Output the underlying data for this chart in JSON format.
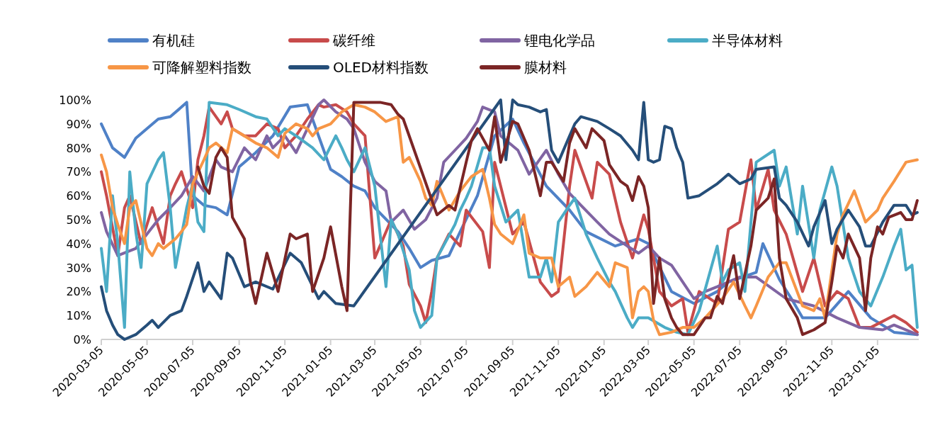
{
  "chart_data": {
    "type": "line",
    "xlim": [
      "2020-03-05",
      "2023-03-01"
    ],
    "xticks": [
      "2020-03-05",
      "2020-05-05",
      "2020-07-05",
      "2020-09-05",
      "2020-11-05",
      "2021-01-05",
      "2021-03-05",
      "2021-05-05",
      "2021-07-05",
      "2021-09-05",
      "2021-11-05",
      "2022-01-05",
      "2022-03-05",
      "2022-05-05",
      "2022-07-05",
      "2022-09-05",
      "2022-11-05",
      "2023-01-05"
    ],
    "ylim": [
      0,
      100
    ],
    "yticks": [
      {
        "value": 0,
        "label": "0%"
      },
      {
        "value": 10,
        "label": "10%"
      },
      {
        "value": 20,
        "label": "20%"
      },
      {
        "value": 30,
        "label": "30%"
      },
      {
        "value": 40,
        "label": "40%"
      },
      {
        "value": 50,
        "label": "50%"
      },
      {
        "value": 60,
        "label": "60%"
      },
      {
        "value": 70,
        "label": "70%"
      },
      {
        "value": 80,
        "label": "80%"
      },
      {
        "value": 90,
        "label": "90%"
      },
      {
        "value": 100,
        "label": "100%"
      }
    ],
    "legend": "top",
    "series": [
      {
        "name": "有机硅",
        "color": "#4f81c7",
        "x": [
          "2020-03-05",
          "2020-03-20",
          "2020-04-05",
          "2020-04-20",
          "2020-05-05",
          "2020-05-20",
          "2020-06-05",
          "2020-06-20",
          "2020-06-27",
          "2020-07-05",
          "2020-07-20",
          "2020-08-05",
          "2020-08-20",
          "2020-09-05",
          "2020-09-27",
          "2020-10-20",
          "2020-11-12",
          "2020-12-05",
          "2020-12-20",
          "2021-01-05",
          "2021-01-20",
          "2021-02-05",
          "2021-02-20",
          "2021-03-05",
          "2021-04-05",
          "2021-04-20",
          "2021-05-05",
          "2021-05-20",
          "2021-06-12",
          "2021-06-27",
          "2021-07-20",
          "2021-08-12",
          "2021-09-05",
          "2021-09-20",
          "2021-10-20",
          "2021-11-20",
          "2021-12-12",
          "2022-01-20",
          "2022-02-20",
          "2022-03-05",
          "2022-04-05",
          "2022-05-05",
          "2022-06-05",
          "2022-06-20",
          "2022-07-27",
          "2022-08-05",
          "2022-08-27",
          "2022-09-12",
          "2022-09-27",
          "2022-10-27",
          "2022-11-27",
          "2022-12-27",
          "2023-01-27",
          "2023-02-27"
        ],
        "values": [
          90,
          80,
          76,
          84,
          88,
          92,
          93,
          97,
          99,
          60,
          56,
          55,
          52,
          72,
          78,
          85,
          97,
          98,
          85,
          71,
          68,
          64,
          62,
          55,
          45,
          38,
          30,
          33,
          35,
          45,
          60,
          85,
          92,
          82,
          64,
          54,
          45,
          39,
          42,
          40,
          20,
          15,
          20,
          24,
          28,
          40,
          25,
          17,
          9,
          9,
          20,
          9,
          3,
          2
        ]
      },
      {
        "name": "碳纤维",
        "color": "#c84b4b",
        "x": [
          "2020-03-05",
          "2020-03-12",
          "2020-03-27",
          "2020-04-05",
          "2020-04-12",
          "2020-04-27",
          "2020-05-12",
          "2020-05-27",
          "2020-06-05",
          "2020-06-12",
          "2020-06-20",
          "2020-07-05",
          "2020-07-12",
          "2020-07-20",
          "2020-07-27",
          "2020-08-12",
          "2020-08-20",
          "2020-08-27",
          "2020-09-12",
          "2020-09-27",
          "2020-10-12",
          "2020-10-27",
          "2020-11-05",
          "2020-11-20",
          "2020-12-05",
          "2020-12-20",
          "2020-12-27",
          "2021-01-12",
          "2021-01-27",
          "2021-02-05",
          "2021-02-20",
          "2021-03-05",
          "2021-03-27",
          "2021-04-12",
          "2021-04-20",
          "2021-05-05",
          "2021-05-12",
          "2021-05-20",
          "2021-05-27",
          "2021-06-12",
          "2021-06-27",
          "2021-07-05",
          "2021-07-27",
          "2021-08-05",
          "2021-08-12",
          "2021-09-05",
          "2021-09-20",
          "2021-10-12",
          "2021-10-27",
          "2021-11-05",
          "2021-11-20",
          "2021-11-27",
          "2021-12-20",
          "2021-12-27",
          "2022-01-12",
          "2022-01-27",
          "2022-02-12",
          "2022-02-27",
          "2022-03-05",
          "2022-03-20",
          "2022-04-05",
          "2022-04-20",
          "2022-04-27",
          "2022-05-12",
          "2022-06-05",
          "2022-06-20",
          "2022-07-05",
          "2022-07-20",
          "2022-07-27",
          "2022-08-12",
          "2022-08-20",
          "2022-09-05",
          "2022-09-27",
          "2022-10-12",
          "2022-10-27",
          "2022-11-12",
          "2022-11-27",
          "2022-12-12",
          "2022-12-27",
          "2023-01-27",
          "2023-02-12",
          "2023-02-27"
        ],
        "values": [
          70,
          60,
          35,
          55,
          60,
          40,
          55,
          40,
          60,
          65,
          70,
          55,
          75,
          85,
          97,
          90,
          95,
          88,
          85,
          85,
          90,
          88,
          80,
          85,
          92,
          98,
          97,
          98,
          95,
          90,
          85,
          34,
          50,
          39,
          23,
          14,
          7,
          20,
          34,
          44,
          39,
          54,
          45,
          30,
          74,
          44,
          49,
          24,
          18,
          20,
          64,
          79,
          59,
          74,
          69,
          49,
          34,
          52,
          46,
          20,
          14,
          17,
          3,
          20,
          15,
          46,
          49,
          75,
          54,
          71,
          54,
          44,
          20,
          34,
          14,
          20,
          17,
          5,
          5,
          10,
          7,
          3
        ]
      },
      {
        "name": "锂电化学品",
        "color": "#8064a2",
        "x": [
          "2020-03-05",
          "2020-03-12",
          "2020-03-27",
          "2020-04-20",
          "2020-05-05",
          "2020-05-20",
          "2020-06-05",
          "2020-06-20",
          "2020-07-05",
          "2020-07-20",
          "2020-08-05",
          "2020-08-12",
          "2020-08-27",
          "2020-09-12",
          "2020-09-27",
          "2020-10-12",
          "2020-10-20",
          "2020-11-05",
          "2020-11-20",
          "2020-12-05",
          "2020-12-20",
          "2020-12-27",
          "2021-01-12",
          "2021-01-27",
          "2021-02-05",
          "2021-02-20",
          "2021-03-05",
          "2021-03-20",
          "2021-03-27",
          "2021-04-12",
          "2021-04-27",
          "2021-05-12",
          "2021-05-27",
          "2021-06-05",
          "2021-06-20",
          "2021-07-05",
          "2021-07-20",
          "2021-07-27",
          "2021-08-12",
          "2021-08-20",
          "2021-09-12",
          "2021-09-27",
          "2021-10-20",
          "2021-11-05",
          "2021-11-20",
          "2021-12-05",
          "2021-12-27",
          "2022-01-12",
          "2022-02-05",
          "2022-02-20",
          "2022-03-05",
          "2022-03-20",
          "2022-04-05",
          "2022-04-20",
          "2022-05-05",
          "2022-05-20",
          "2022-06-05",
          "2022-07-05",
          "2022-07-27",
          "2022-08-05",
          "2022-09-05",
          "2022-10-12",
          "2022-11-12",
          "2022-12-12",
          "2023-01-12",
          "2023-01-27",
          "2023-02-27"
        ],
        "values": [
          53,
          45,
          35,
          38,
          44,
          50,
          55,
          60,
          68,
          62,
          75,
          72,
          70,
          80,
          75,
          85,
          80,
          85,
          78,
          88,
          98,
          100,
          95,
          92,
          88,
          74,
          66,
          62,
          49,
          54,
          46,
          50,
          59,
          74,
          79,
          84,
          91,
          97,
          95,
          85,
          79,
          69,
          79,
          69,
          61,
          56,
          49,
          44,
          39,
          36,
          39,
          34,
          31,
          24,
          17,
          20,
          22,
          26,
          26,
          24,
          17,
          14,
          9,
          5,
          4,
          6,
          2
        ]
      },
      {
        "name": "半导体材料",
        "color": "#4bacc6",
        "x": [
          "2020-03-05",
          "2020-03-12",
          "2020-03-20",
          "2020-03-27",
          "2020-04-05",
          "2020-04-12",
          "2020-04-20",
          "2020-04-27",
          "2020-05-05",
          "2020-05-20",
          "2020-05-27",
          "2020-06-05",
          "2020-06-12",
          "2020-06-27",
          "2020-07-05",
          "2020-07-12",
          "2020-07-20",
          "2020-07-27",
          "2020-08-20",
          "2020-09-05",
          "2020-09-27",
          "2020-10-12",
          "2020-10-27",
          "2020-11-05",
          "2020-11-20",
          "2020-12-12",
          "2020-12-27",
          "2021-01-12",
          "2021-01-20",
          "2021-01-27",
          "2021-02-05",
          "2021-02-20",
          "2021-03-05",
          "2021-03-20",
          "2021-03-27",
          "2021-04-05",
          "2021-04-20",
          "2021-04-27",
          "2021-05-05",
          "2021-05-20",
          "2021-05-27",
          "2021-06-20",
          "2021-06-27",
          "2021-07-05",
          "2021-07-12",
          "2021-07-27",
          "2021-08-05",
          "2021-08-12",
          "2021-08-27",
          "2021-09-12",
          "2021-09-27",
          "2021-10-12",
          "2021-10-20",
          "2021-10-27",
          "2021-11-05",
          "2021-11-20",
          "2021-11-27",
          "2021-12-12",
          "2021-12-27",
          "2022-01-12",
          "2022-01-20",
          "2022-02-05",
          "2022-02-12",
          "2022-02-20",
          "2022-03-05",
          "2022-03-27",
          "2022-04-12",
          "2022-04-27",
          "2022-05-12",
          "2022-06-05",
          "2022-06-12",
          "2022-06-20",
          "2022-07-05",
          "2022-07-12",
          "2022-07-27",
          "2022-08-20",
          "2022-08-27",
          "2022-09-05",
          "2022-09-20",
          "2022-09-27",
          "2022-10-12",
          "2022-10-20",
          "2022-11-05",
          "2022-11-12",
          "2022-11-27",
          "2022-12-12",
          "2022-12-27",
          "2023-01-12",
          "2023-01-27",
          "2023-02-05",
          "2023-02-12",
          "2023-02-20",
          "2023-02-27"
        ],
        "values": [
          38,
          20,
          60,
          40,
          5,
          70,
          45,
          30,
          65,
          75,
          78,
          55,
          30,
          55,
          65,
          49,
          45,
          99,
          98,
          96,
          93,
          92,
          85,
          88,
          85,
          80,
          75,
          85,
          80,
          75,
          70,
          80,
          64,
          22,
          50,
          44,
          29,
          12,
          5,
          10,
          34,
          48,
          54,
          59,
          64,
          80,
          80,
          64,
          49,
          54,
          26,
          26,
          34,
          24,
          49,
          56,
          59,
          44,
          34,
          24,
          20,
          9,
          5,
          9,
          9,
          5,
          3,
          2,
          12,
          39,
          24,
          29,
          32,
          20,
          74,
          79,
          64,
          72,
          44,
          64,
          34,
          54,
          72,
          64,
          34,
          20,
          14,
          26,
          39,
          46,
          29,
          31,
          5
        ]
      },
      {
        "name": "可降解塑料指数",
        "color": "#f79646",
        "x": [
          "2020-03-05",
          "2020-03-12",
          "2020-03-20",
          "2020-03-27",
          "2020-04-05",
          "2020-04-12",
          "2020-04-20",
          "2020-05-05",
          "2020-05-12",
          "2020-05-20",
          "2020-05-27",
          "2020-06-12",
          "2020-06-20",
          "2020-06-27",
          "2020-07-05",
          "2020-07-20",
          "2020-07-27",
          "2020-08-05",
          "2020-08-20",
          "2020-08-27",
          "2020-09-12",
          "2020-09-27",
          "2020-10-12",
          "2020-10-27",
          "2020-11-05",
          "2020-11-20",
          "2020-12-05",
          "2020-12-12",
          "2020-12-20",
          "2021-01-05",
          "2021-01-20",
          "2021-02-05",
          "2021-02-20",
          "2021-03-05",
          "2021-03-20",
          "2021-04-05",
          "2021-04-12",
          "2021-04-20",
          "2021-05-05",
          "2021-05-12",
          "2021-05-20",
          "2021-05-27",
          "2021-06-12",
          "2021-06-27",
          "2021-07-12",
          "2021-07-27",
          "2021-08-05",
          "2021-08-12",
          "2021-08-20",
          "2021-09-05",
          "2021-09-20",
          "2021-09-27",
          "2021-10-12",
          "2021-10-27",
          "2021-11-05",
          "2021-11-20",
          "2021-11-27",
          "2021-12-12",
          "2021-12-27",
          "2022-01-12",
          "2022-01-20",
          "2022-02-05",
          "2022-02-12",
          "2022-02-20",
          "2022-02-27",
          "2022-03-05",
          "2022-03-12",
          "2022-03-20",
          "2022-04-05",
          "2022-04-20",
          "2022-05-05",
          "2022-05-20",
          "2022-06-12",
          "2022-06-27",
          "2022-07-12",
          "2022-07-20",
          "2022-07-27",
          "2022-08-12",
          "2022-08-27",
          "2022-09-05",
          "2022-09-27",
          "2022-10-12",
          "2022-10-20",
          "2022-10-27",
          "2022-11-12",
          "2022-11-20",
          "2022-12-05",
          "2022-12-20",
          "2023-01-05",
          "2023-01-12",
          "2023-01-27",
          "2023-02-12",
          "2023-02-27"
        ],
        "values": [
          77,
          70,
          55,
          48,
          40,
          55,
          58,
          38,
          35,
          40,
          38,
          42,
          45,
          48,
          65,
          75,
          80,
          82,
          78,
          88,
          85,
          82,
          80,
          76,
          86,
          90,
          88,
          85,
          88,
          90,
          95,
          98,
          97,
          95,
          91,
          93,
          74,
          76,
          66,
          59,
          56,
          66,
          54,
          62,
          68,
          71,
          59,
          48,
          44,
          40,
          52,
          36,
          34,
          34,
          22,
          26,
          18,
          22,
          28,
          22,
          32,
          30,
          9,
          20,
          22,
          20,
          8,
          2,
          3,
          5,
          5,
          9,
          17,
          24,
          14,
          9,
          14,
          26,
          32,
          32,
          14,
          12,
          17,
          9,
          44,
          52,
          62,
          49,
          54,
          59,
          66,
          74,
          75
        ]
      },
      {
        "name": "OLED材料指数",
        "color": "#254e79",
        "x": [
          "2020-03-05",
          "2020-03-12",
          "2020-03-20",
          "2020-03-27",
          "2020-04-05",
          "2020-04-20",
          "2020-05-05",
          "2020-05-12",
          "2020-05-20",
          "2020-06-05",
          "2020-06-20",
          "2020-06-27",
          "2020-07-12",
          "2020-07-20",
          "2020-07-27",
          "2020-08-12",
          "2020-08-20",
          "2020-08-27",
          "2020-09-12",
          "2020-09-27",
          "2020-10-20",
          "2020-11-12",
          "2020-11-27",
          "2020-12-20",
          "2020-12-27",
          "2021-01-12",
          "2021-02-05",
          "2021-08-20",
          "2021-08-27",
          "2021-09-05",
          "2021-09-12",
          "2021-09-27",
          "2021-10-12",
          "2021-10-20",
          "2021-10-27",
          "2021-11-05",
          "2021-11-20",
          "2021-11-27",
          "2021-12-05",
          "2021-12-27",
          "2022-01-12",
          "2022-01-27",
          "2022-02-12",
          "2022-02-20",
          "2022-02-27",
          "2022-03-05",
          "2022-03-12",
          "2022-03-20",
          "2022-03-27",
          "2022-04-05",
          "2022-04-12",
          "2022-04-20",
          "2022-04-27",
          "2022-05-12",
          "2022-06-05",
          "2022-06-20",
          "2022-07-05",
          "2022-07-20",
          "2022-07-27",
          "2022-08-20",
          "2022-08-27",
          "2022-09-05",
          "2022-09-20",
          "2022-10-05",
          "2022-10-12",
          "2022-10-27",
          "2022-11-05",
          "2022-11-12",
          "2022-11-27",
          "2022-12-12",
          "2022-12-20",
          "2022-12-27",
          "2023-01-12",
          "2023-01-27",
          "2023-02-12",
          "2023-02-20",
          "2023-02-27"
        ],
        "values": [
          22,
          12,
          6,
          2,
          0,
          2,
          6,
          8,
          5,
          10,
          12,
          18,
          32,
          20,
          24,
          17,
          36,
          34,
          22,
          24,
          21,
          36,
          32,
          17,
          20,
          15,
          14,
          100,
          75,
          100,
          98,
          97,
          95,
          96,
          79,
          74,
          85,
          90,
          93,
          91,
          88,
          85,
          79,
          75,
          99,
          75,
          74,
          75,
          89,
          88,
          80,
          74,
          59,
          60,
          65,
          69,
          65,
          67,
          71,
          72,
          59,
          56,
          49,
          39,
          47,
          58,
          40,
          46,
          54,
          47,
          39,
          39,
          49,
          56,
          56,
          52,
          53
        ]
      },
      {
        "name": "膜材料",
        "color": "#7b2525",
        "x": [
          "2020-07-12",
          "2020-07-20",
          "2020-07-27",
          "2020-08-05",
          "2020-08-12",
          "2020-08-20",
          "2020-08-27",
          "2020-09-12",
          "2020-09-20",
          "2020-09-27",
          "2020-10-12",
          "2020-10-27",
          "2020-11-12",
          "2020-11-20",
          "2020-12-05",
          "2020-12-12",
          "2020-12-27",
          "2021-01-05",
          "2021-01-20",
          "2021-01-27",
          "2021-02-05",
          "2021-03-12",
          "2021-03-27",
          "2021-04-05",
          "2021-04-12",
          "2021-05-27",
          "2021-06-12",
          "2021-06-20",
          "2021-07-05",
          "2021-07-12",
          "2021-07-20",
          "2021-08-05",
          "2021-08-12",
          "2021-08-20",
          "2021-09-05",
          "2021-09-12",
          "2021-09-27",
          "2021-10-05",
          "2021-10-12",
          "2021-10-20",
          "2021-10-27",
          "2021-11-12",
          "2021-11-20",
          "2021-11-27",
          "2021-12-12",
          "2021-12-20",
          "2022-01-05",
          "2022-01-12",
          "2022-01-27",
          "2022-02-05",
          "2022-02-12",
          "2022-02-20",
          "2022-02-27",
          "2022-03-05",
          "2022-03-12",
          "2022-03-20",
          "2022-03-27",
          "2022-04-05",
          "2022-04-12",
          "2022-04-20",
          "2022-05-05",
          "2022-05-20",
          "2022-05-27",
          "2022-06-05",
          "2022-06-12",
          "2022-06-27",
          "2022-07-05",
          "2022-07-20",
          "2022-07-27",
          "2022-08-12",
          "2022-08-20",
          "2022-08-27",
          "2022-09-05",
          "2022-09-20",
          "2022-09-27",
          "2022-10-12",
          "2022-10-27",
          "2022-11-05",
          "2022-11-12",
          "2022-11-20",
          "2022-11-27",
          "2022-12-12",
          "2022-12-20",
          "2022-12-27",
          "2023-01-05",
          "2023-01-12",
          "2023-01-20",
          "2023-02-05",
          "2023-02-12",
          "2023-02-20",
          "2023-02-27"
        ],
        "values": [
          72,
          64,
          61,
          76,
          80,
          76,
          51,
          42,
          24,
          15,
          36,
          20,
          44,
          42,
          44,
          20,
          34,
          47,
          22,
          12,
          99,
          99,
          98,
          94,
          92,
          52,
          56,
          54,
          74,
          83,
          88,
          79,
          93,
          74,
          91,
          90,
          79,
          69,
          60,
          74,
          74,
          66,
          82,
          88,
          80,
          88,
          83,
          73,
          66,
          64,
          58,
          68,
          64,
          55,
          15,
          34,
          17,
          9,
          5,
          2,
          2,
          9,
          9,
          18,
          15,
          35,
          17,
          39,
          54,
          59,
          67,
          34,
          17,
          9,
          2,
          4,
          7,
          24,
          39,
          34,
          44,
          34,
          12,
          34,
          47,
          44,
          51,
          53,
          50,
          50,
          58
        ]
      }
    ]
  }
}
